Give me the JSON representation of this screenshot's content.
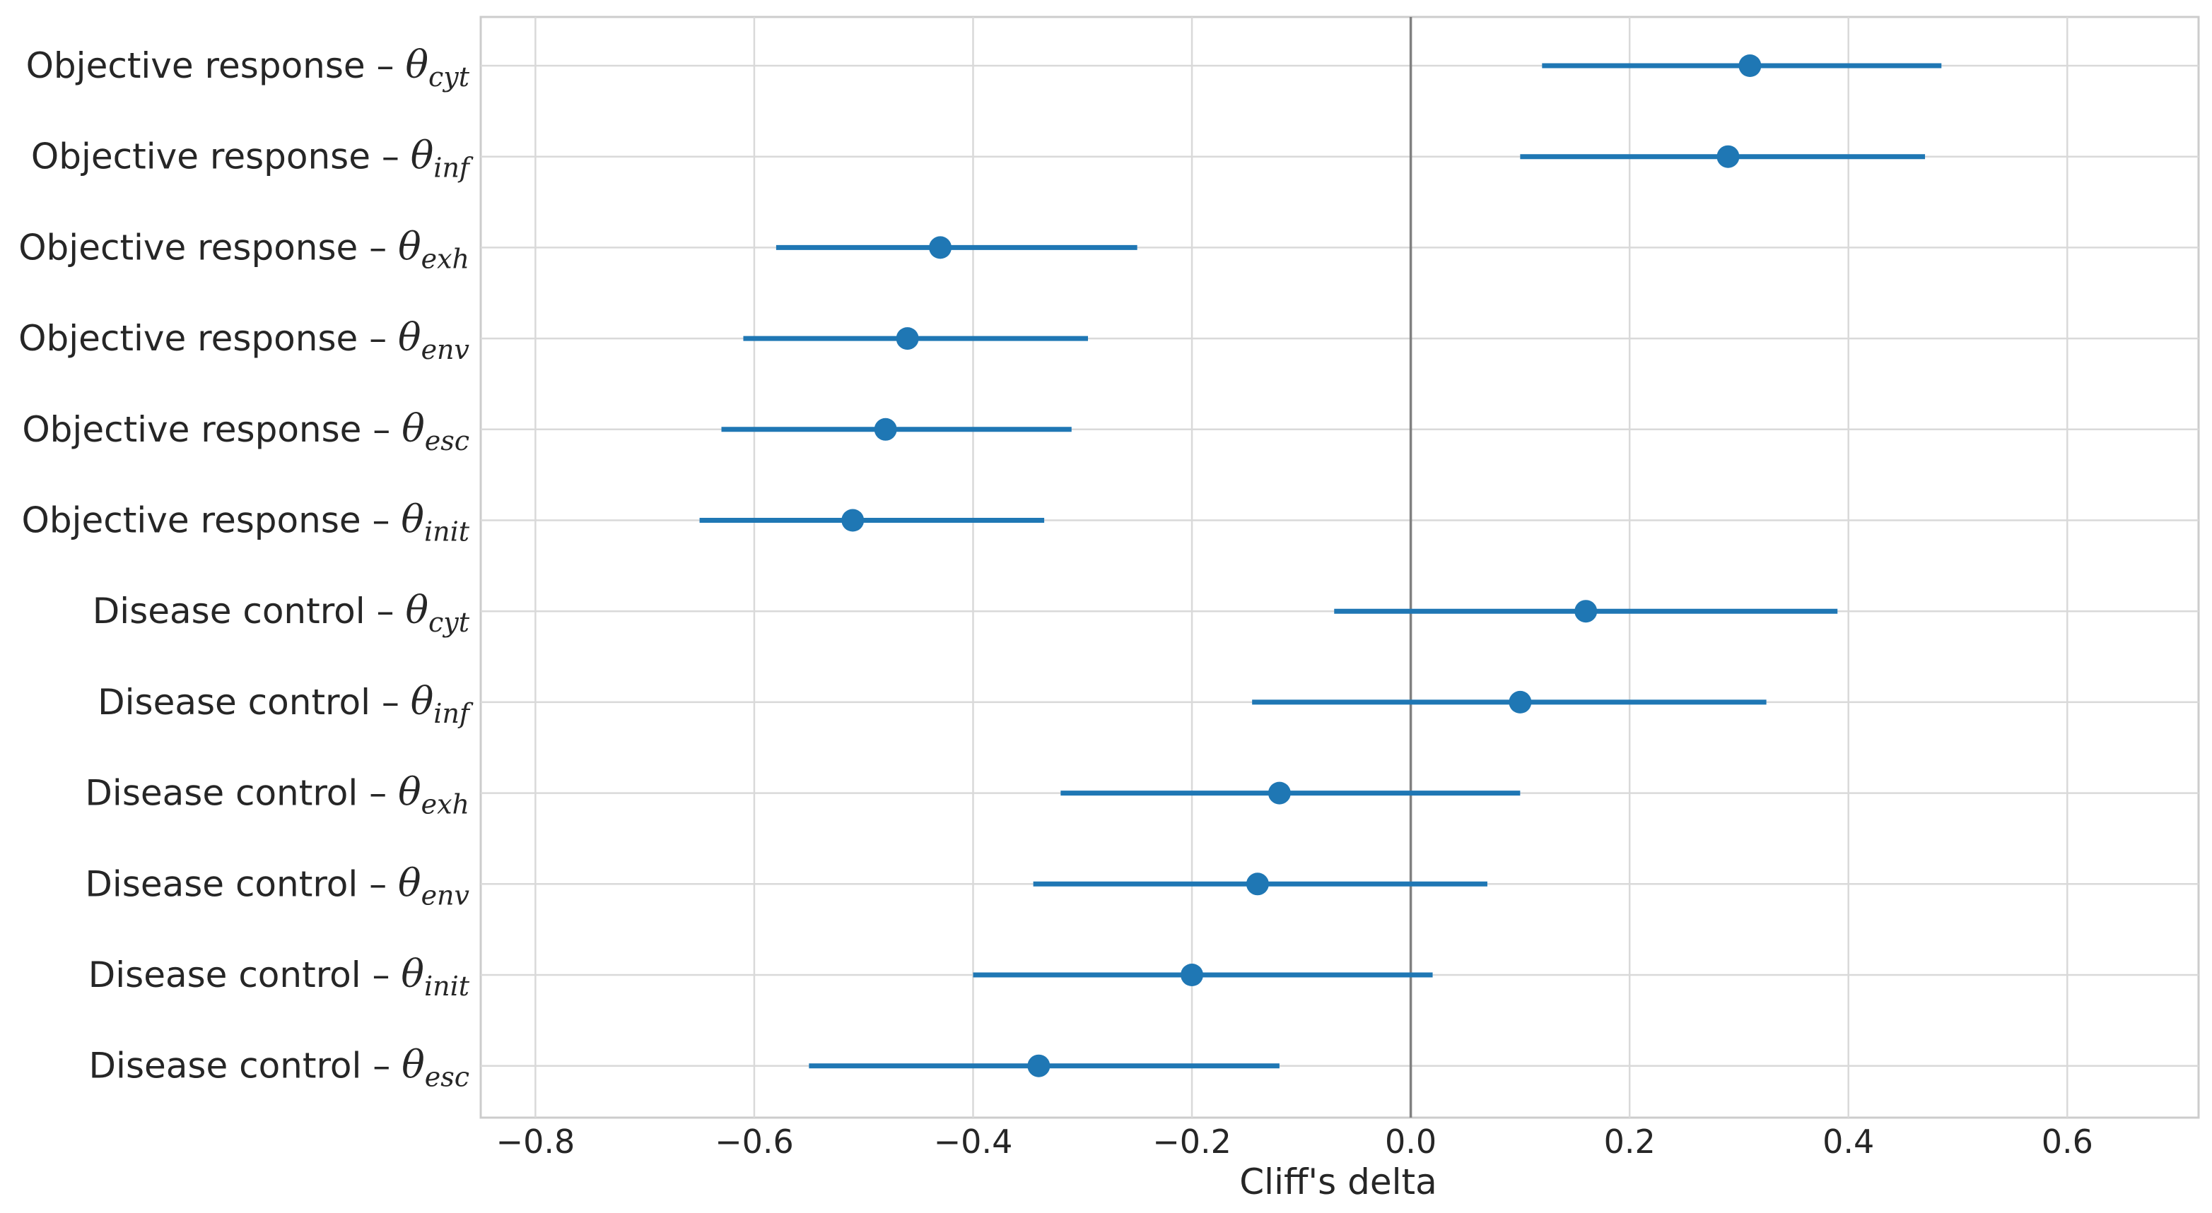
{
  "chart_data": {
    "type": "scatter",
    "title": "",
    "xlabel": "Cliff's delta",
    "ylabel": "",
    "xlim": [
      -0.85,
      0.72
    ],
    "xticks": [
      -0.8,
      -0.6,
      -0.4,
      -0.2,
      0.0,
      0.2,
      0.4,
      0.6
    ],
    "xtick_labels": [
      "−0.8",
      "−0.6",
      "−0.4",
      "−0.2",
      "0.0",
      "0.2",
      "0.4",
      "0.6"
    ],
    "grid": true,
    "reference_line_x": 0.0,
    "point_color": "#1f77b4",
    "reference_line_color": "#808080",
    "grid_color": "#d9d9d9",
    "rows": [
      {
        "prefix": "Objective response – ",
        "symbol": "θ",
        "sub": "cyt",
        "estimate": 0.31,
        "ci_low": 0.12,
        "ci_high": 0.485
      },
      {
        "prefix": "Objective response – ",
        "symbol": "θ",
        "sub": "inf",
        "estimate": 0.29,
        "ci_low": 0.1,
        "ci_high": 0.47
      },
      {
        "prefix": "Objective response – ",
        "symbol": "θ",
        "sub": "exh",
        "estimate": -0.43,
        "ci_low": -0.58,
        "ci_high": -0.25
      },
      {
        "prefix": "Objective response – ",
        "symbol": "θ",
        "sub": "env",
        "estimate": -0.46,
        "ci_low": -0.61,
        "ci_high": -0.295
      },
      {
        "prefix": "Objective response – ",
        "symbol": "θ",
        "sub": "esc",
        "estimate": -0.48,
        "ci_low": -0.63,
        "ci_high": -0.31
      },
      {
        "prefix": "Objective response – ",
        "symbol": "θ",
        "sub": "init",
        "estimate": -0.51,
        "ci_low": -0.65,
        "ci_high": -0.335
      },
      {
        "prefix": "Disease control – ",
        "symbol": "θ",
        "sub": "cyt",
        "estimate": 0.16,
        "ci_low": -0.07,
        "ci_high": 0.39
      },
      {
        "prefix": "Disease control – ",
        "symbol": "θ",
        "sub": "inf",
        "estimate": 0.1,
        "ci_low": -0.145,
        "ci_high": 0.325
      },
      {
        "prefix": "Disease control – ",
        "symbol": "θ",
        "sub": "exh",
        "estimate": -0.12,
        "ci_low": -0.32,
        "ci_high": 0.1
      },
      {
        "prefix": "Disease control – ",
        "symbol": "θ",
        "sub": "env",
        "estimate": -0.14,
        "ci_low": -0.345,
        "ci_high": 0.07
      },
      {
        "prefix": "Disease control – ",
        "symbol": "θ",
        "sub": "init",
        "estimate": -0.2,
        "ci_low": -0.4,
        "ci_high": 0.02
      },
      {
        "prefix": "Disease control – ",
        "symbol": "θ",
        "sub": "esc",
        "estimate": -0.34,
        "ci_low": -0.55,
        "ci_high": -0.12
      }
    ]
  }
}
